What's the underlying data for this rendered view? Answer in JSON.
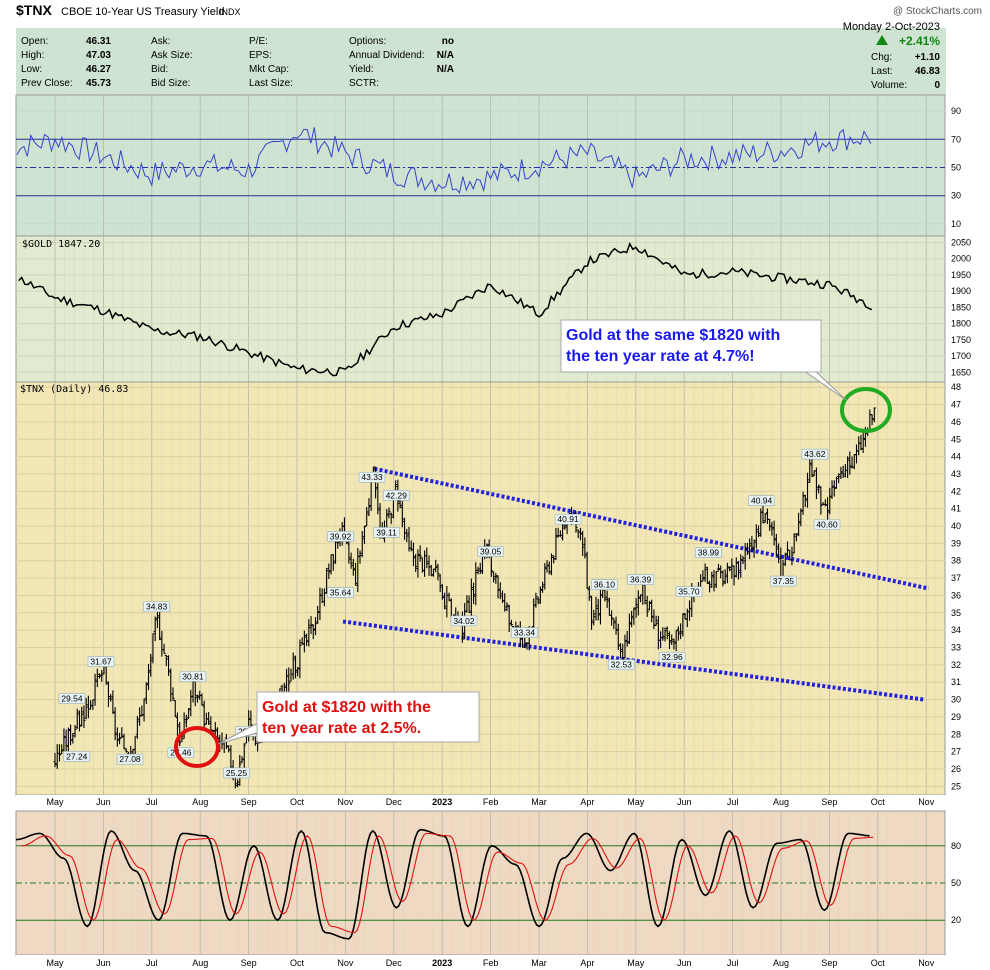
{
  "header": {
    "symbol": "$TNX",
    "name": "CBOE 10-Year US Treasury Yield",
    "exchange": "INDX",
    "watermark": "@ StockCharts.com",
    "date": "Monday  2-Oct-2023",
    "pct_change": "+2.41%",
    "rows": [
      {
        "a_label": "Open:",
        "a_value": "46.31",
        "b_label": "Ask:",
        "b_value": "",
        "c_label": "P/E:",
        "c_value": "",
        "d_label": "Options:",
        "d_value": "no"
      },
      {
        "a_label": "High:",
        "a_value": "47.03",
        "b_label": "Ask Size:",
        "b_value": "",
        "c_label": "EPS:",
        "c_value": "",
        "d_label": "Annual Dividend:",
        "d_value": "N/A"
      },
      {
        "a_label": "Low:",
        "a_value": "46.27",
        "b_label": "Bid:",
        "b_value": "",
        "c_label": "Mkt Cap:",
        "c_value": "",
        "d_label": "Yield:",
        "d_value": "N/A"
      },
      {
        "a_label": "Prev Close:",
        "a_value": "45.73",
        "b_label": "Bid Size:",
        "b_value": "",
        "c_label": "Last Size:",
        "c_value": "",
        "d_label": "SCTR:",
        "d_value": ""
      }
    ],
    "right_rows": [
      {
        "label": "Chg:",
        "value": "+1.10"
      },
      {
        "label": "Last:",
        "value": "46.83"
      },
      {
        "label": "Volume:",
        "value": "0"
      }
    ]
  },
  "colors": {
    "rsi_bg": "#cfe3d3",
    "gold_bg": "#e0ebcf",
    "price_bg": "#f1e6b4",
    "stoch_bg": "#f0d9c2",
    "rsi_line": "#3344cc",
    "gold_line": "#000000",
    "trendline": "#2222dd",
    "red_circle": "#e01010",
    "green_circle": "#22aa22",
    "up": "#118811",
    "stoch_fast": "#000000",
    "stoch_slow": "#dd1111"
  },
  "chart_data": [
    {
      "type": "line",
      "panel": "rsi",
      "y_ticks": [
        "90",
        "70",
        "50",
        "30",
        "10"
      ],
      "ylim": [
        0,
        100
      ],
      "reference_lines": [
        70,
        50,
        30
      ],
      "x": [
        "Apr",
        "May",
        "Jun",
        "Jul",
        "Aug",
        "Sep",
        "Oct",
        "Nov",
        "Dec",
        "Jan",
        "Feb",
        "Mar",
        "Apr",
        "May",
        "Jun",
        "Jul",
        "Aug",
        "Sep",
        "Oct"
      ],
      "values": [
        62,
        70,
        58,
        45,
        52,
        48,
        76,
        60,
        46,
        40,
        43,
        52,
        60,
        42,
        56,
        58,
        62,
        70,
        72
      ]
    },
    {
      "type": "line",
      "panel": "gold",
      "legend": "$GOLD 1847.20",
      "y_ticks": [
        "2050",
        "2000",
        "1950",
        "1900",
        "1850",
        "1800",
        "1750",
        "1700",
        "1650"
      ],
      "ylim": [
        1620,
        2070
      ],
      "x": [
        "Apr",
        "May",
        "Jun",
        "Jul",
        "Aug",
        "Sep",
        "Oct",
        "Nov",
        "Dec",
        "Jan",
        "Feb",
        "Mar",
        "Apr",
        "May",
        "Jun",
        "Jul",
        "Aug",
        "Sep",
        "Oct"
      ],
      "values": [
        1960,
        1880,
        1840,
        1780,
        1760,
        1710,
        1660,
        1650,
        1790,
        1830,
        1920,
        1830,
        1990,
        2040,
        1950,
        1960,
        1940,
        1920,
        1847
      ]
    },
    {
      "type": "bar",
      "subtype": "ohlc",
      "panel": "price",
      "legend": "$TNX (Daily) 46.83",
      "y_ticks": [
        "48",
        "47",
        "46",
        "45",
        "44",
        "43",
        "42",
        "41",
        "40",
        "39",
        "38",
        "37",
        "36",
        "35",
        "34",
        "33",
        "32",
        "31",
        "30",
        "29",
        "28",
        "27",
        "26",
        "25"
      ],
      "ylim": [
        24.5,
        48.3
      ],
      "x_ticks": [
        "May",
        "Jun",
        "Jul",
        "Aug",
        "Sep",
        "Oct",
        "Nov",
        "Dec",
        "2023",
        "Feb",
        "Mar",
        "Apr",
        "May",
        "Jun",
        "Jul",
        "Aug",
        "Sep",
        "Oct",
        "Nov"
      ],
      "anchors": [
        {
          "x": 0.0,
          "y": 26.5
        },
        {
          "x": 0.3,
          "y": 28.0
        },
        {
          "x": 0.65,
          "y": 29.5
        },
        {
          "x": 1.0,
          "y": 31.7
        },
        {
          "x": 1.3,
          "y": 27.5
        },
        {
          "x": 1.55,
          "y": 27.1
        },
        {
          "x": 1.85,
          "y": 30.0
        },
        {
          "x": 2.1,
          "y": 34.8
        },
        {
          "x": 2.35,
          "y": 31.5
        },
        {
          "x": 2.6,
          "y": 27.5
        },
        {
          "x": 2.85,
          "y": 30.8
        },
        {
          "x": 3.15,
          "y": 28.5
        },
        {
          "x": 3.55,
          "y": 27.0
        },
        {
          "x": 3.75,
          "y": 25.3
        },
        {
          "x": 4.0,
          "y": 28.7
        },
        {
          "x": 4.2,
          "y": 27.5
        },
        {
          "x": 4.6,
          "y": 30.0
        },
        {
          "x": 5.3,
          "y": 34.0
        },
        {
          "x": 5.9,
          "y": 39.9
        },
        {
          "x": 6.2,
          "y": 37.0
        },
        {
          "x": 6.6,
          "y": 43.3
        },
        {
          "x": 6.75,
          "y": 39.1
        },
        {
          "x": 7.05,
          "y": 42.3
        },
        {
          "x": 7.3,
          "y": 38.5
        },
        {
          "x": 7.8,
          "y": 37.5
        },
        {
          "x": 8.1,
          "y": 35.5
        },
        {
          "x": 8.4,
          "y": 34.0
        },
        {
          "x": 8.9,
          "y": 39.0
        },
        {
          "x": 9.2,
          "y": 35.5
        },
        {
          "x": 9.7,
          "y": 33.3
        },
        {
          "x": 10.1,
          "y": 37.0
        },
        {
          "x": 10.6,
          "y": 40.9
        },
        {
          "x": 10.9,
          "y": 39.0
        },
        {
          "x": 11.1,
          "y": 34.5
        },
        {
          "x": 11.35,
          "y": 36.1
        },
        {
          "x": 11.7,
          "y": 32.5
        },
        {
          "x": 12.1,
          "y": 36.4
        },
        {
          "x": 12.45,
          "y": 34.0
        },
        {
          "x": 12.75,
          "y": 33.0
        },
        {
          "x": 13.1,
          "y": 35.7
        },
        {
          "x": 13.4,
          "y": 37.0
        },
        {
          "x": 14.0,
          "y": 37.2
        },
        {
          "x": 14.7,
          "y": 40.9
        },
        {
          "x": 15.0,
          "y": 37.3
        },
        {
          "x": 15.35,
          "y": 39.5
        },
        {
          "x": 15.6,
          "y": 43.6
        },
        {
          "x": 15.9,
          "y": 40.6
        },
        {
          "x": 16.2,
          "y": 43.0
        },
        {
          "x": 16.45,
          "y": 43.5
        },
        {
          "x": 16.7,
          "y": 45.0
        },
        {
          "x": 16.95,
          "y": 46.83
        }
      ],
      "labels": [
        {
          "text": "29.54",
          "x": 0.35,
          "y": 29.54
        },
        {
          "text": "27.24",
          "x": 0.45,
          "y": 27.24
        },
        {
          "text": "31.67",
          "x": 0.95,
          "y": 31.67
        },
        {
          "text": "27.08",
          "x": 1.55,
          "y": 27.08
        },
        {
          "text": "34.83",
          "x": 2.1,
          "y": 34.83
        },
        {
          "text": "27.46",
          "x": 2.6,
          "y": 27.46
        },
        {
          "text": "30.81",
          "x": 2.85,
          "y": 30.81
        },
        {
          "text": "28.69",
          "x": 4.0,
          "y": 28.69
        },
        {
          "text": "25.25",
          "x": 3.75,
          "y": 25.25
        },
        {
          "text": "39.92",
          "x": 5.9,
          "y": 39.92
        },
        {
          "text": "35.64",
          "x": 5.9,
          "y": 35.64
        },
        {
          "text": "43.33",
          "x": 6.55,
          "y": 43.33
        },
        {
          "text": "39.11",
          "x": 6.85,
          "y": 39.11
        },
        {
          "text": "42.29",
          "x": 7.05,
          "y": 42.29
        },
        {
          "text": "34.02",
          "x": 8.45,
          "y": 34.02
        },
        {
          "text": "39.05",
          "x": 9.0,
          "y": 39.05
        },
        {
          "text": "33.34",
          "x": 9.7,
          "y": 33.34
        },
        {
          "text": "40.91",
          "x": 10.6,
          "y": 40.91
        },
        {
          "text": "36.10",
          "x": 11.35,
          "y": 36.1
        },
        {
          "text": "32.53",
          "x": 11.7,
          "y": 32.53
        },
        {
          "text": "36.39",
          "x": 12.1,
          "y": 36.39
        },
        {
          "text": "32.96",
          "x": 12.75,
          "y": 32.96
        },
        {
          "text": "35.70",
          "x": 13.1,
          "y": 35.7
        },
        {
          "text": "38.99",
          "x": 13.5,
          "y": 38.99
        },
        {
          "text": "40.94",
          "x": 14.6,
          "y": 40.94
        },
        {
          "text": "37.35",
          "x": 15.05,
          "y": 37.35
        },
        {
          "text": "43.62",
          "x": 15.7,
          "y": 43.62
        },
        {
          "text": "40.60",
          "x": 15.95,
          "y": 40.6
        }
      ],
      "trendlines": [
        {
          "from": {
            "x": 6.6,
            "y": 43.3
          },
          "to": {
            "x": 18.05,
            "y": 36.4
          }
        },
        {
          "from": {
            "x": 5.95,
            "y": 34.5
          },
          "to": {
            "x": 17.95,
            "y": 30.0
          }
        }
      ],
      "annotations": [
        {
          "text": "Gold at the same $1820 with the ten year rate at 4.7%!",
          "color": "#1a1aee"
        },
        {
          "text": "Gold at $1820 with the ten year rate at 2.5%.",
          "color": "#e01010"
        }
      ]
    },
    {
      "type": "line",
      "panel": "stochastic",
      "y_ticks": [
        "80",
        "50",
        "20"
      ],
      "ylim": [
        0,
        100
      ],
      "reference_lines": [
        80,
        50,
        20
      ],
      "x_ticks": [
        "May",
        "Jun",
        "Jul",
        "Aug",
        "Sep",
        "Oct",
        "Nov",
        "Dec",
        "2023",
        "Feb",
        "Mar",
        "Apr",
        "May",
        "Jun",
        "Jul",
        "Aug",
        "Sep",
        "Oct",
        "Nov"
      ],
      "series": [
        {
          "values": [
            85,
            90,
            70,
            15,
            92,
            60,
            20,
            90,
            88,
            20,
            80,
            20,
            92,
            10,
            5,
            92,
            30,
            93,
            88,
            15,
            80,
            65,
            15,
            70,
            90,
            60,
            90,
            15,
            85,
            40,
            92,
            30,
            82,
            85,
            28,
            90,
            88
          ]
        },
        {
          "values": [
            80,
            88,
            72,
            20,
            85,
            62,
            25,
            85,
            86,
            25,
            75,
            25,
            88,
            15,
            10,
            88,
            35,
            90,
            88,
            20,
            75,
            66,
            20,
            65,
            86,
            62,
            86,
            20,
            80,
            42,
            88,
            34,
            78,
            84,
            32,
            86,
            87
          ]
        }
      ]
    }
  ],
  "callouts": [
    {
      "line1": "Gold at the same $1820 with",
      "line2": "the ten year rate at 4.7%!"
    },
    {
      "line1": "Gold at $1820 with the",
      "line2": "ten year rate at 2.5%."
    }
  ]
}
